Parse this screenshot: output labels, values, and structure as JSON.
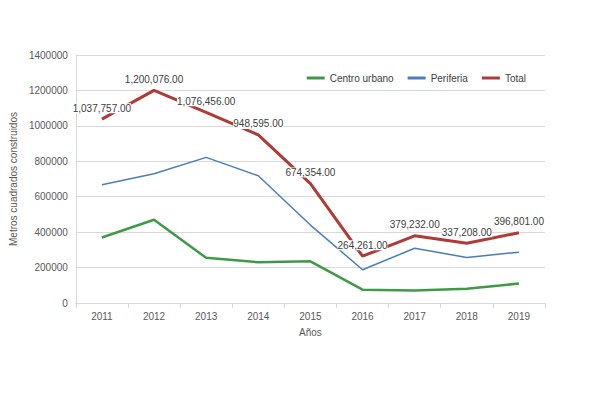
{
  "chart_data": {
    "type": "line",
    "x_label": "Años",
    "y_label": "Metros cuadrados construidos",
    "categories": [
      "2011",
      "2012",
      "2013",
      "2014",
      "2015",
      "2016",
      "2017",
      "2018",
      "2019"
    ],
    "series": [
      {
        "name": "Centro urbano",
        "color": "#3f9a48",
        "values": [
          370000,
          470000,
          255000,
          230000,
          235000,
          75000,
          70000,
          80000,
          110000
        ]
      },
      {
        "name": "Periferia",
        "color": "#4a7ebb",
        "values": [
          668000,
          730000,
          822000,
          718000,
          440000,
          188000,
          309000,
          257000,
          287000
        ]
      },
      {
        "name": "Total",
        "color": "#b03a36",
        "data_labels": true,
        "values": [
          1037757,
          1200076,
          1076456,
          948595,
          674354,
          264261,
          379232,
          337208,
          396801
        ],
        "value_labels": [
          "1,037,757.00",
          "1,200,076.00",
          "1,076,456.00",
          "948,595.00",
          "674,354.00",
          "264,261.00",
          "379,232.00",
          "337,208.00",
          "396,801.00"
        ]
      }
    ],
    "ylim": [
      0,
      1400000
    ],
    "yticks": [
      0,
      200000,
      400000,
      600000,
      800000,
      1000000,
      1200000,
      1400000
    ],
    "grid": true,
    "legend": "top-right"
  }
}
